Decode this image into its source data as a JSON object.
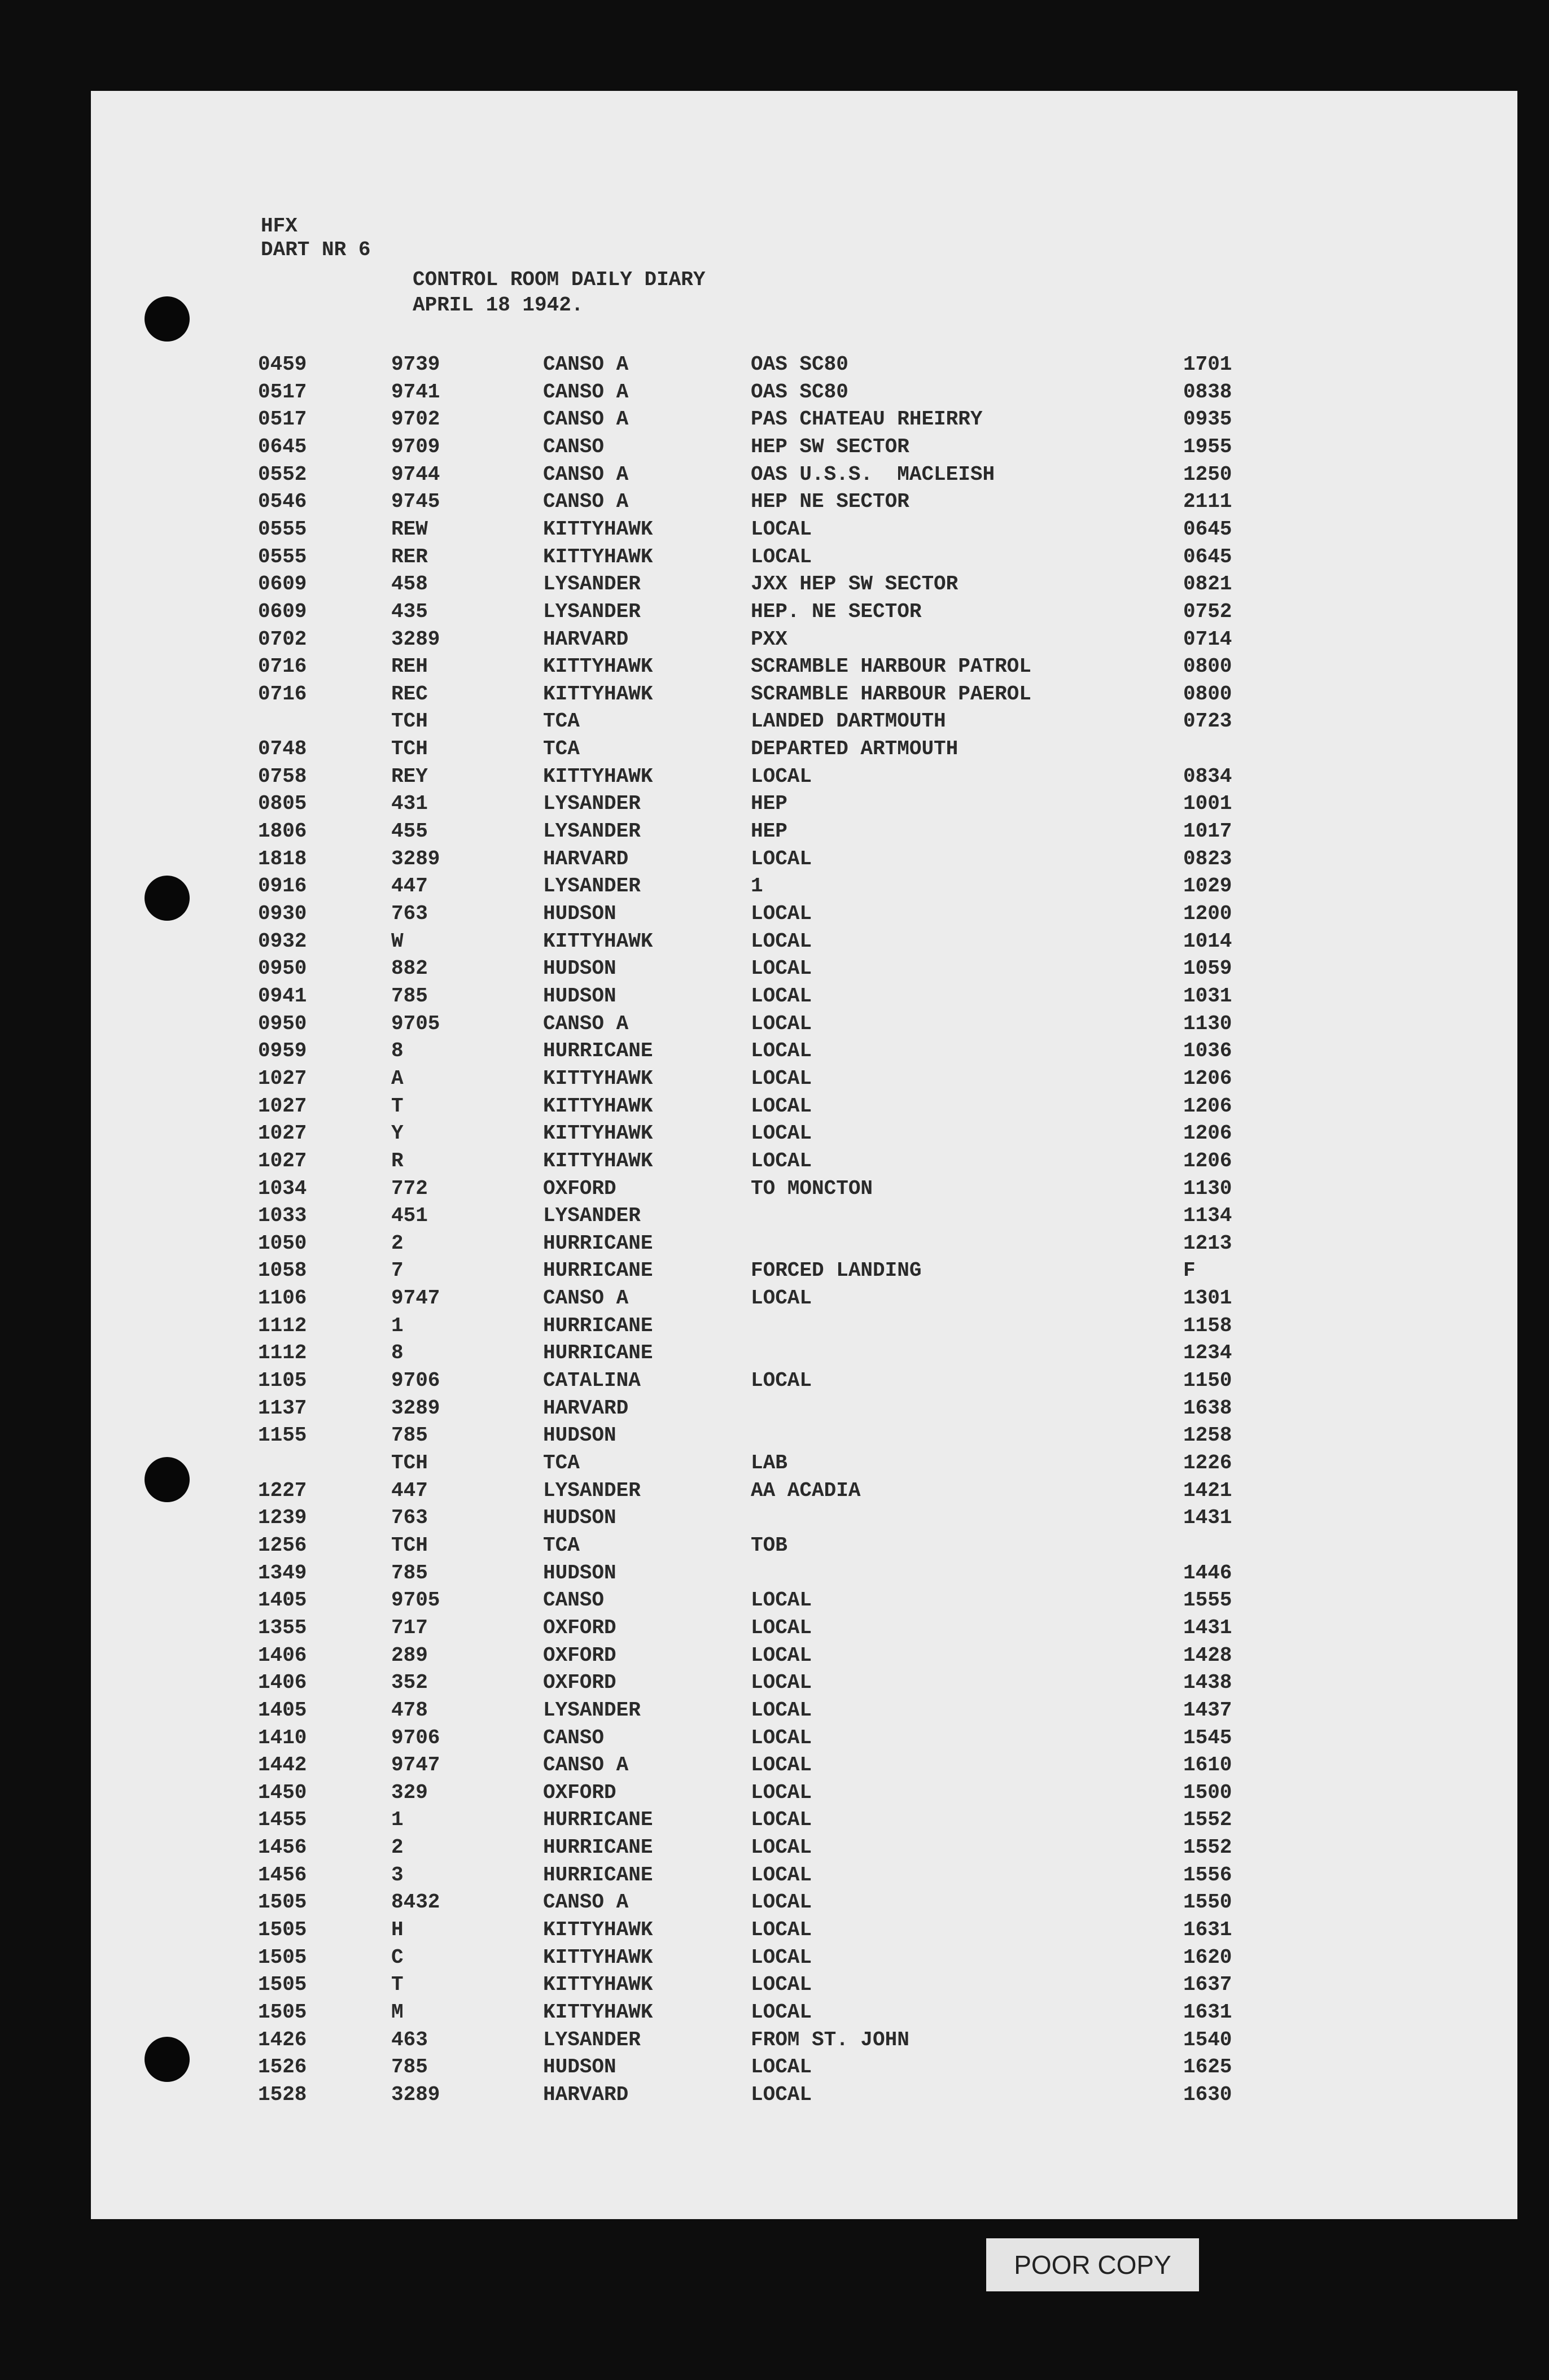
{
  "header": {
    "station": "HFX",
    "dart": "DART NR 6",
    "title": "CONTROL ROOM DAILY DIARY",
    "date": "APRIL 18 1942."
  },
  "table": {
    "rows": [
      {
        "time": "0459",
        "id": "9739",
        "aircraft": "CANSO A",
        "remark": "OAS SC80",
        "ret": "1701"
      },
      {
        "time": "0517",
        "id": "9741",
        "aircraft": "CANSO A",
        "remark": "OAS SC80",
        "ret": "0838"
      },
      {
        "time": "0517",
        "id": "9702",
        "aircraft": "CANSO A",
        "remark": "PAS CHATEAU RHEIRRY",
        "ret": "0935"
      },
      {
        "time": "0645",
        "id": "9709",
        "aircraft": "CANSO",
        "remark": "HEP SW SECTOR",
        "ret": "1955"
      },
      {
        "time": "0552",
        "id": "9744",
        "aircraft": "CANSO A",
        "remark": "OAS U.S.S.  MACLEISH",
        "ret": "1250"
      },
      {
        "time": "0546",
        "id": "9745",
        "aircraft": "CANSO A",
        "remark": "HEP NE SECTOR",
        "ret": "2111"
      },
      {
        "time": "0555",
        "id": "REW",
        "aircraft": "KITTYHAWK",
        "remark": "LOCAL",
        "ret": "0645"
      },
      {
        "time": "0555",
        "id": "RER",
        "aircraft": "KITTYHAWK",
        "remark": "LOCAL",
        "ret": "0645"
      },
      {
        "time": "0609",
        "id": "458",
        "aircraft": "LYSANDER",
        "remark": "JXX HEP SW SECTOR",
        "ret": "0821"
      },
      {
        "time": "0609",
        "id": "435",
        "aircraft": "LYSANDER",
        "remark": "HEP. NE SECTOR",
        "ret": "0752"
      },
      {
        "time": "0702",
        "id": "3289",
        "aircraft": "HARVARD",
        "remark": "PXX",
        "ret": "0714"
      },
      {
        "time": "0716",
        "id": "REH",
        "aircraft": "KITTYHAWK",
        "remark": "SCRAMBLE HARBOUR PATROL",
        "ret": "0800"
      },
      {
        "time": "0716",
        "id": "REC",
        "aircraft": "KITTYHAWK",
        "remark": "SCRAMBLE HARBOUR PAEROL",
        "ret": "0800"
      },
      {
        "id": "TCH",
        "aircraft": "TCA",
        "remark": "LANDED DARTMOUTH",
        "ret": "0723"
      },
      {
        "time": "0748",
        "id": "TCH",
        "aircraft": "TCA",
        "remark": "DEPARTED ARTMOUTH"
      },
      {
        "time": "0758",
        "id": "REY",
        "aircraft": "KITTYHAWK",
        "remark": "LOCAL",
        "ret": "0834"
      },
      {
        "time": "0805",
        "id": "431",
        "aircraft": "LYSANDER",
        "remark": "HEP",
        "ret": "1001"
      },
      {
        "time": "1806",
        "id": "455",
        "aircraft": "LYSANDER",
        "remark": "HEP",
        "ret": "1017"
      },
      {
        "time": "1818",
        "id": "3289",
        "aircraft": "HARVARD",
        "remark": "LOCAL",
        "ret": "0823"
      },
      {
        "time": "0916",
        "id": "447",
        "aircraft": "LYSANDER",
        "remark": "1",
        "ret": "1029"
      },
      {
        "time": "0930",
        "id": "763",
        "aircraft": "HUDSON",
        "remark": "LOCAL",
        "ret": "1200"
      },
      {
        "time": "0932",
        "id": "W",
        "aircraft": "KITTYHAWK",
        "remark": "LOCAL",
        "ret": "1014"
      },
      {
        "time": "0950",
        "id": "882",
        "aircraft": "HUDSON",
        "remark": "LOCAL",
        "ret": "1059"
      },
      {
        "time": "0941",
        "id": "785",
        "aircraft": "HUDSON",
        "remark": "LOCAL",
        "ret": "1031"
      },
      {
        "time": "0950",
        "id": "9705",
        "aircraft": "CANSO A",
        "remark": "LOCAL",
        "ret": "1130"
      },
      {
        "time": "0959",
        "id": "8",
        "aircraft": "HURRICANE",
        "remark": "LOCAL",
        "ret": "1036"
      },
      {
        "time": "1027",
        "id": "A",
        "aircraft": "KITTYHAWK",
        "remark": "LOCAL",
        "ret": "1206"
      },
      {
        "time": "1027",
        "id": "T",
        "aircraft": "KITTYHAWK",
        "remark": "LOCAL",
        "ret": "1206"
      },
      {
        "time": "1027",
        "id": "Y",
        "aircraft": "KITTYHAWK",
        "remark": "LOCAL",
        "ret": "1206"
      },
      {
        "time": "1027",
        "id": "R",
        "aircraft": "KITTYHAWK",
        "remark": "LOCAL",
        "ret": "1206"
      },
      {
        "time": "1034",
        "id": "772",
        "aircraft": "OXFORD",
        "remark": "TO MONCTON",
        "ret": "1130"
      },
      {
        "time": "1033",
        "id": "451",
        "aircraft": "LYSANDER",
        "ret": "1134"
      },
      {
        "time": "1050",
        "id": "2",
        "aircraft": "HURRICANE",
        "ret": "1213"
      },
      {
        "time": "1058",
        "id": "7",
        "aircraft": "HURRICANE",
        "remark": "FORCED LANDING",
        "ret": "F"
      },
      {
        "time": "1106",
        "id": "9747",
        "aircraft": "CANSO A",
        "remark": "LOCAL",
        "ret": "1301"
      },
      {
        "time": "1112",
        "id": "1",
        "aircraft": "HURRICANE",
        "ret": "1158"
      },
      {
        "time": "1112",
        "id": "8",
        "aircraft": "HURRICANE",
        "ret": "1234"
      },
      {
        "time": "1105",
        "id": "9706",
        "aircraft": "CATALINA",
        "remark": "LOCAL",
        "ret": "1150"
      },
      {
        "time": "1137",
        "id": "3289",
        "aircraft": "HARVARD",
        "ret": "1638"
      },
      {
        "time": "1155",
        "id": "785",
        "aircraft": "HUDSON",
        "ret": "1258"
      },
      {
        "id": "TCH",
        "aircraft": "TCA",
        "remark": "LAB",
        "ret": "1226"
      },
      {
        "time": "1227",
        "id": "447",
        "aircraft": "LYSANDER",
        "remark": "AA ACADIA",
        "ret": "1421"
      },
      {
        "time": "1239",
        "id": "763",
        "aircraft": "HUDSON",
        "ret": "1431"
      },
      {
        "time": "1256",
        "id": "TCH",
        "aircraft": "TCA",
        "remark": "TOB"
      },
      {
        "time": "1349",
        "id": "785",
        "aircraft": "HUDSON",
        "ret": "1446"
      },
      {
        "time": "1405",
        "id": "9705",
        "aircraft": "CANSO",
        "remark": "LOCAL",
        "ret": "1555"
      },
      {
        "time": "1355",
        "id": "717",
        "aircraft": "OXFORD",
        "remark": "LOCAL",
        "ret": "1431"
      },
      {
        "time": "1406",
        "id": "289",
        "aircraft": "OXFORD",
        "remark": "LOCAL",
        "ret": "1428"
      },
      {
        "time": "1406",
        "id": "352",
        "aircraft": "OXFORD",
        "remark": "LOCAL",
        "ret": "1438"
      },
      {
        "time": "1405",
        "id": "478",
        "aircraft": "LYSANDER",
        "remark": "LOCAL",
        "ret": "1437"
      },
      {
        "time": "1410",
        "id": "9706",
        "aircraft": "CANSO",
        "remark": "LOCAL",
        "ret": "1545"
      },
      {
        "time": "1442",
        "id": "9747",
        "aircraft": "CANSO A",
        "remark": "LOCAL",
        "ret": "1610"
      },
      {
        "time": "1450",
        "id": "329",
        "aircraft": "OXFORD",
        "remark": "LOCAL",
        "ret": "1500"
      },
      {
        "time": "1455",
        "id": "1",
        "aircraft": "HURRICANE",
        "remark": "LOCAL",
        "ret": "1552"
      },
      {
        "time": "1456",
        "id": "2",
        "aircraft": "HURRICANE",
        "remark": "LOCAL",
        "ret": "1552"
      },
      {
        "time": "1456",
        "id": "3",
        "aircraft": "HURRICANE",
        "remark": "LOCAL",
        "ret": "1556"
      },
      {
        "time": "1505",
        "id": "8432",
        "aircraft": "CANSO A",
        "remark": "LOCAL",
        "ret": "1550"
      },
      {
        "time": "1505",
        "id": "H",
        "aircraft": "KITTYHAWK",
        "remark": "LOCAL",
        "ret": "1631"
      },
      {
        "time": "1505",
        "id": "C",
        "aircraft": "KITTYHAWK",
        "remark": "LOCAL",
        "ret": "1620"
      },
      {
        "time": "1505",
        "id": "T",
        "aircraft": "KITTYHAWK",
        "remark": "LOCAL",
        "ret": "1637"
      },
      {
        "time": "1505",
        "id": "M",
        "aircraft": "KITTYHAWK",
        "remark": "LOCAL",
        "ret": "1631"
      },
      {
        "time": "1426",
        "id": "463",
        "aircraft": "LYSANDER",
        "remark": "FROM ST. JOHN",
        "ret": "1540"
      },
      {
        "time": "1526",
        "id": "785",
        "aircraft": "HUDSON",
        "remark": "LOCAL",
        "ret": "1625"
      },
      {
        "time": "1528",
        "id": "3289",
        "aircraft": "HARVARD",
        "remark": "LOCAL",
        "ret": "1630"
      }
    ]
  },
  "stamp": "POOR COPY"
}
